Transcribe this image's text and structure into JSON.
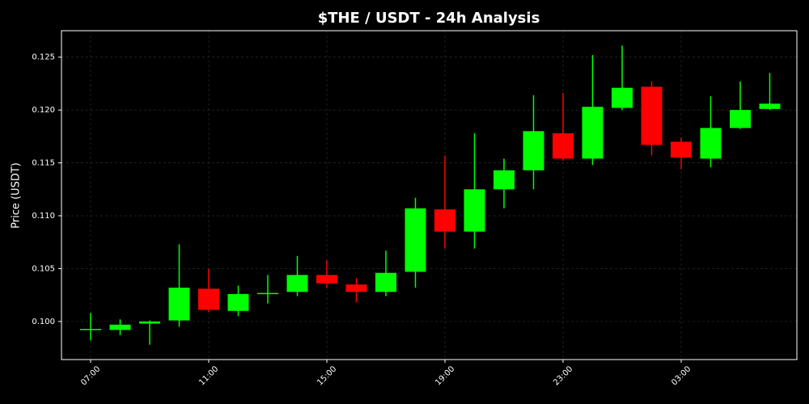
{
  "chart_data": {
    "type": "candlestick",
    "title": "$THE / USDT - 24h Analysis",
    "y_label": "Price (USDT)",
    "categories": [
      "07:00",
      null,
      null,
      null,
      "11:00",
      null,
      null,
      null,
      "15:00",
      null,
      null,
      null,
      "19:00",
      null,
      null,
      null,
      "23:00",
      null,
      null,
      null,
      "03:00",
      null,
      null,
      null
    ],
    "open": [
      0.0992,
      0.0992,
      0.0998,
      0.1001,
      0.1031,
      0.101,
      0.1026,
      0.1028,
      0.1044,
      0.1035,
      0.1028,
      0.1047,
      0.1106,
      0.1085,
      0.1125,
      0.1143,
      0.1178,
      0.1154,
      0.1202,
      0.1222,
      0.117,
      0.1154,
      0.1183,
      0.1201
    ],
    "high": [
      0.1008,
      0.1002,
      0.1001,
      0.1073,
      0.105,
      0.1034,
      0.1044,
      0.1062,
      0.1058,
      0.1041,
      0.1067,
      0.1117,
      0.1157,
      0.1178,
      0.1154,
      0.1214,
      0.1216,
      0.1252,
      0.1261,
      0.1227,
      0.1174,
      0.1213,
      0.1227,
      0.1235
    ],
    "low": [
      0.0982,
      0.0987,
      0.0978,
      0.0995,
      0.1009,
      0.1005,
      0.1017,
      0.1024,
      0.1032,
      0.1018,
      0.1024,
      0.1032,
      0.1069,
      0.1069,
      0.1107,
      0.1125,
      0.1152,
      0.1148,
      0.12,
      0.1157,
      0.1144,
      0.1146,
      0.1182,
      0.12
    ],
    "close": [
      0.0993,
      0.0997,
      0.1,
      0.1032,
      0.1011,
      0.1026,
      0.1027,
      0.1044,
      0.1036,
      0.1028,
      0.1046,
      0.1107,
      0.1085,
      0.1125,
      0.1143,
      0.118,
      0.1154,
      0.1203,
      0.1221,
      0.1167,
      0.1155,
      0.1183,
      0.12,
      0.1206
    ],
    "up_color": "#00ff00",
    "down_color": "#ff0000",
    "ylim": [
      0.0964,
      0.1275
    ],
    "yticks": [
      {
        "value": 0.1,
        "label": "0.100"
      },
      {
        "value": 0.105,
        "label": "0.105"
      },
      {
        "value": 0.11,
        "label": "0.110"
      },
      {
        "value": 0.115,
        "label": "0.115"
      },
      {
        "value": 0.12,
        "label": "0.120"
      },
      {
        "value": 0.125,
        "label": "0.125"
      }
    ],
    "grid": true
  }
}
